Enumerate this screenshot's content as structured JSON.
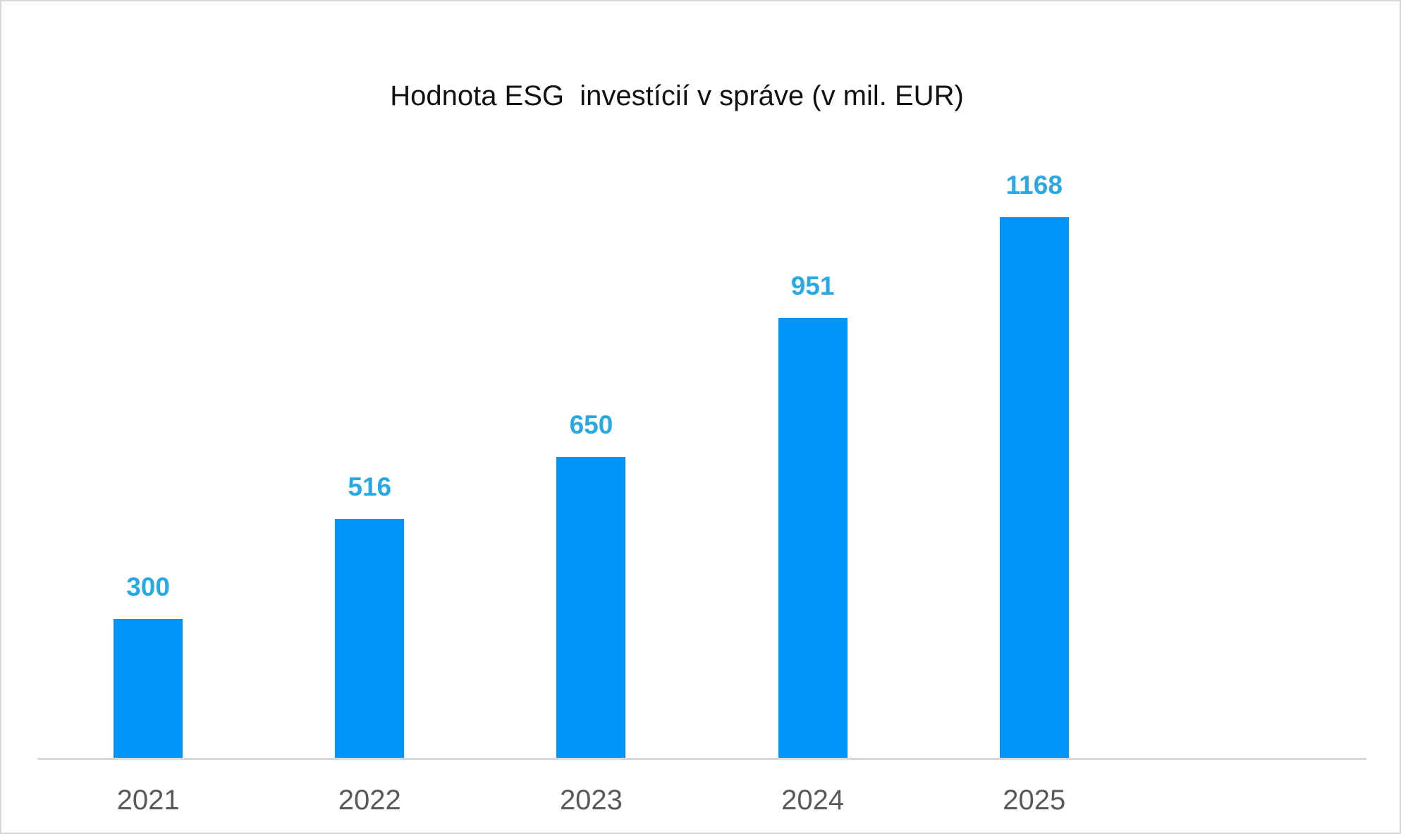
{
  "chart_data": {
    "type": "bar",
    "title": "Hodnota ESG  investícií v správe (v mil. EUR)",
    "categories": [
      "2021",
      "2022",
      "2023",
      "2024",
      "2025"
    ],
    "values": [
      300,
      516,
      650,
      951,
      1168
    ],
    "xlabel": "",
    "ylabel": "",
    "ylim": [
      0,
      1250
    ],
    "grid": false,
    "legend": false,
    "data_labels_shown": true,
    "empty_trailing_slots": 1
  },
  "colors": {
    "bar": "#0296FB",
    "value_label": "#29A9E3",
    "axis_line": "#D9D9D9",
    "category_label": "#595959",
    "title": "#111111",
    "background": "#FFFFFF",
    "border": "#D8D8D8"
  }
}
